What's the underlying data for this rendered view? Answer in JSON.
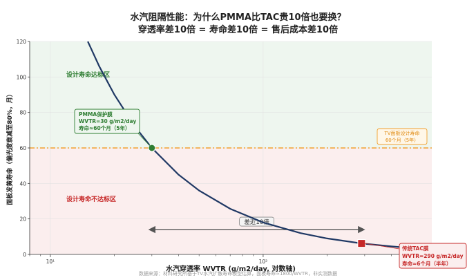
{
  "chart_data": {
    "type": "line",
    "title": "水汽阻隔性能：为什么PMMA比TAC贵10倍也要换？",
    "subtitle": "穿透率差10倍 = 寿命差10倍 = 售后成本差10倍",
    "xlabel": "水汽穿透率 WVTR (g/m2/day, 对数轴)",
    "ylabel": "面板发黄寿命（偏光度衰减至80%，月）",
    "x_scale": "log",
    "xlim": [
      8,
      620
    ],
    "ylim": [
      0,
      120
    ],
    "x_ticks": [
      10,
      100
    ],
    "x_tick_labels": [
      "10¹",
      "10²"
    ],
    "y_ticks": [
      0,
      20,
      40,
      60,
      80,
      100,
      120
    ],
    "curve": {
      "formula": "y = 1800 / x",
      "x": [
        15,
        17,
        20,
        25,
        30,
        40,
        50,
        70,
        100,
        150,
        200,
        290,
        400,
        500,
        600
      ],
      "y": [
        120,
        105.9,
        90,
        72,
        60,
        45,
        36,
        25.7,
        18,
        12,
        9,
        6.2,
        4.5,
        3.6,
        3
      ]
    },
    "points": [
      {
        "name": "PMMA保护膜",
        "x": 30,
        "y": 60,
        "color": "#2e7d32"
      },
      {
        "name": "传统TAC膜",
        "x": 290,
        "y": 6.2,
        "color": "#c62828"
      }
    ],
    "threshold": {
      "y": 60,
      "color": "#f0a030"
    },
    "regions": {
      "above": {
        "label": "设计寿命达标区",
        "color": "#2e7d32",
        "fill": "#eef6ef"
      },
      "below": {
        "label": "设计寿命不达标区",
        "color": "#c62828",
        "fill": "#fbeeee"
      }
    },
    "annotations": {
      "pmma": {
        "line1": "PMMA保护膜",
        "line2": "WVTR=30 g/m2/day",
        "line3": "寿命≈60个月（5年）"
      },
      "tac": {
        "line1": "传统TAC膜",
        "line2": "WVTR=290 g/m2/day",
        "line3": "寿命≈6个月（半年）"
      },
      "threshold": {
        "line1": "TV面板设计寿命",
        "line2": "60个月（5年）"
      },
      "gap": {
        "label": "差近10倍",
        "x_from": 30,
        "x_to": 290,
        "y": 14
      }
    },
    "source": "数据来源：材料研究所基于TV水汽扩散寿命模型估算，面板寿命≈1800/WVTR，非实测数据"
  }
}
